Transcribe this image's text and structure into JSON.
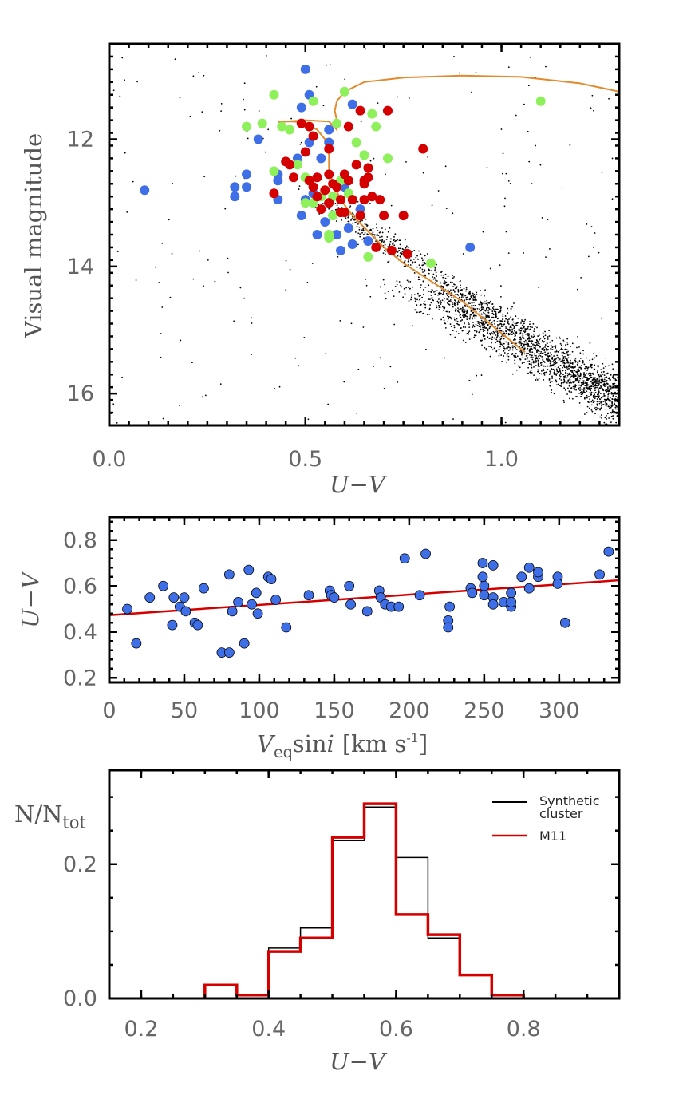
{
  "colors": {
    "blue": "#3f6fe6",
    "green": "#8ef05a",
    "red": "#d40000",
    "orange": "#e28a2b",
    "black": "#000000"
  },
  "chart_data": [
    {
      "type": "scatter",
      "xlabel": "U−V",
      "ylabel": "Visual magnitude",
      "xlim": [
        0.0,
        1.3
      ],
      "ylim": [
        16.5,
        10.5
      ],
      "y_inverted": true,
      "xticks": [
        "0.0",
        "0.5",
        "1.0"
      ],
      "yticks": [
        "12",
        "14",
        "16"
      ],
      "field_stars": "dense scatter of small black dots following the cluster main sequence, thickest at U−V 0.95–1.3, V 14.5–16.5",
      "series": [
        {
          "color": "blue",
          "points": [
            [
              0.09,
              12.8
            ],
            [
              0.32,
              12.75
            ],
            [
              0.32,
              12.9
            ],
            [
              0.35,
              12.55
            ],
            [
              0.35,
              12.75
            ],
            [
              0.38,
              12.0
            ],
            [
              0.43,
              12.55
            ],
            [
              0.43,
              12.65
            ],
            [
              0.43,
              12.95
            ],
            [
              0.48,
              12.3
            ],
            [
              0.49,
              13.2
            ],
            [
              0.49,
              11.5
            ],
            [
              0.5,
              10.9
            ],
            [
              0.5,
              12.95
            ],
            [
              0.51,
              11.3
            ],
            [
              0.51,
              12.05
            ],
            [
              0.52,
              12.85
            ],
            [
              0.53,
              13.5
            ],
            [
              0.54,
              12.3
            ],
            [
              0.55,
              13.3
            ],
            [
              0.56,
              11.85
            ],
            [
              0.56,
              12.05
            ],
            [
              0.58,
              13.5
            ],
            [
              0.59,
              13.75
            ],
            [
              0.6,
              12.75
            ],
            [
              0.61,
              13.4
            ],
            [
              0.62,
              11.45
            ],
            [
              0.62,
              13.65
            ],
            [
              0.64,
              13.1
            ],
            [
              0.66,
              13.6
            ],
            [
              0.92,
              13.7
            ]
          ]
        },
        {
          "color": "green",
          "points": [
            [
              0.35,
              11.8
            ],
            [
              0.39,
              11.75
            ],
            [
              0.42,
              11.3
            ],
            [
              0.42,
              12.5
            ],
            [
              0.44,
              11.8
            ],
            [
              0.46,
              11.85
            ],
            [
              0.48,
              12.4
            ],
            [
              0.5,
              12.6
            ],
            [
              0.5,
              13.0
            ],
            [
              0.52,
              11.4
            ],
            [
              0.52,
              13.0
            ],
            [
              0.54,
              12.9
            ],
            [
              0.56,
              13.5
            ],
            [
              0.56,
              13.55
            ],
            [
              0.57,
              12.9
            ],
            [
              0.57,
              13.2
            ],
            [
              0.58,
              11.75
            ],
            [
              0.59,
              12.65
            ],
            [
              0.6,
              11.25
            ],
            [
              0.61,
              12.85
            ],
            [
              0.63,
              12.05
            ],
            [
              0.65,
              12.25
            ],
            [
              0.66,
              13.85
            ],
            [
              0.67,
              11.6
            ],
            [
              0.68,
              11.8
            ],
            [
              0.71,
              12.3
            ],
            [
              0.82,
              13.95
            ],
            [
              1.1,
              11.4
            ]
          ]
        },
        {
          "color": "red",
          "points": [
            [
              0.42,
              12.85
            ],
            [
              0.45,
              12.35
            ],
            [
              0.46,
              12.4
            ],
            [
              0.47,
              12.6
            ],
            [
              0.49,
              11.75
            ],
            [
              0.5,
              12.2
            ],
            [
              0.51,
              12.65
            ],
            [
              0.51,
              11.8
            ],
            [
              0.52,
              11.95
            ],
            [
              0.52,
              12.75
            ],
            [
              0.53,
              12.6
            ],
            [
              0.53,
              12.9
            ],
            [
              0.54,
              13.1
            ],
            [
              0.55,
              12.8
            ],
            [
              0.56,
              12.15
            ],
            [
              0.56,
              12.55
            ],
            [
              0.56,
              13.0
            ],
            [
              0.57,
              12.7
            ],
            [
              0.58,
              12.75
            ],
            [
              0.59,
              12.95
            ],
            [
              0.59,
              13.15
            ],
            [
              0.6,
              12.55
            ],
            [
              0.6,
              13.15
            ],
            [
              0.61,
              11.8
            ],
            [
              0.61,
              12.65
            ],
            [
              0.62,
              12.95
            ],
            [
              0.63,
              12.4
            ],
            [
              0.64,
              11.55
            ],
            [
              0.64,
              13.2
            ],
            [
              0.65,
              12.65
            ],
            [
              0.65,
              12.7
            ],
            [
              0.65,
              12.95
            ],
            [
              0.66,
              12.45
            ],
            [
              0.66,
              12.6
            ],
            [
              0.67,
              12.9
            ],
            [
              0.68,
              13.7
            ],
            [
              0.69,
              12.95
            ],
            [
              0.7,
              13.2
            ],
            [
              0.71,
              11.55
            ],
            [
              0.72,
              13.75
            ],
            [
              0.75,
              13.2
            ],
            [
              0.76,
              13.8
            ],
            [
              0.8,
              12.15
            ]
          ]
        }
      ],
      "isochrone": {
        "color": "orange",
        "x": [
          1.06,
          1.0,
          0.95,
          0.9,
          0.85,
          0.8,
          0.75,
          0.7,
          0.66,
          0.62,
          0.59,
          0.57,
          0.56,
          0.56,
          0.55,
          0.53,
          0.5,
          0.47,
          0.45,
          0.43,
          0.45,
          0.5,
          0.56,
          0.58,
          0.58,
          0.575,
          0.58,
          0.6,
          0.65,
          0.75,
          0.9,
          1.05,
          1.2,
          1.3
        ],
        "y": [
          15.35,
          15.05,
          14.8,
          14.55,
          14.35,
          14.15,
          13.95,
          13.7,
          13.45,
          13.2,
          12.95,
          12.7,
          12.45,
          12.2,
          12.0,
          11.85,
          11.75,
          11.72,
          11.72,
          11.73,
          11.72,
          11.7,
          11.72,
          11.85,
          11.7,
          11.55,
          11.4,
          11.25,
          11.1,
          11.03,
          11.0,
          11.02,
          11.12,
          11.25
        ]
      }
    },
    {
      "type": "scatter",
      "xlabel_main": "V",
      "xlabel_sub": "eq",
      "xlabel_sin": "sin",
      "xlabel_i": "i",
      "xlabel_units": "[km s",
      "xlabel_sup": "-1",
      "xlabel_close": "]",
      "ylabel": "U−V",
      "xlim": [
        0,
        340
      ],
      "ylim": [
        0.18,
        0.9
      ],
      "xticks": [
        "0",
        "50",
        "100",
        "150",
        "200",
        "250",
        "300"
      ],
      "yticks": [
        "0.2",
        "0.4",
        "0.6",
        "0.8"
      ],
      "points": [
        [
          12,
          0.5
        ],
        [
          18,
          0.35
        ],
        [
          27,
          0.55
        ],
        [
          36,
          0.6
        ],
        [
          42,
          0.43
        ],
        [
          43,
          0.55
        ],
        [
          47,
          0.51
        ],
        [
          50,
          0.55
        ],
        [
          51,
          0.49
        ],
        [
          57,
          0.44
        ],
        [
          59,
          0.43
        ],
        [
          63,
          0.59
        ],
        [
          75,
          0.31
        ],
        [
          80,
          0.65
        ],
        [
          80,
          0.31
        ],
        [
          82,
          0.49
        ],
        [
          86,
          0.53
        ],
        [
          90,
          0.35
        ],
        [
          93,
          0.67
        ],
        [
          95,
          0.52
        ],
        [
          98,
          0.57
        ],
        [
          99,
          0.48
        ],
        [
          106,
          0.64
        ],
        [
          108,
          0.63
        ],
        [
          111,
          0.54
        ],
        [
          118,
          0.42
        ],
        [
          133,
          0.56
        ],
        [
          147,
          0.58
        ],
        [
          148,
          0.56
        ],
        [
          150,
          0.55
        ],
        [
          160,
          0.6
        ],
        [
          161,
          0.52
        ],
        [
          172,
          0.49
        ],
        [
          180,
          0.58
        ],
        [
          181,
          0.55
        ],
        [
          184,
          0.52
        ],
        [
          188,
          0.51
        ],
        [
          193,
          0.51
        ],
        [
          197,
          0.72
        ],
        [
          207,
          0.56
        ],
        [
          211,
          0.74
        ],
        [
          226,
          0.45
        ],
        [
          226,
          0.42
        ],
        [
          227,
          0.51
        ],
        [
          241,
          0.59
        ],
        [
          242,
          0.57
        ],
        [
          249,
          0.7
        ],
        [
          249,
          0.64
        ],
        [
          250,
          0.6
        ],
        [
          250,
          0.56
        ],
        [
          256,
          0.69
        ],
        [
          256,
          0.55
        ],
        [
          256,
          0.52
        ],
        [
          263,
          0.53
        ],
        [
          268,
          0.57
        ],
        [
          268,
          0.51
        ],
        [
          268,
          0.53
        ],
        [
          275,
          0.64
        ],
        [
          280,
          0.68
        ],
        [
          280,
          0.59
        ],
        [
          286,
          0.64
        ],
        [
          286,
          0.66
        ],
        [
          299,
          0.64
        ],
        [
          299,
          0.61
        ],
        [
          304,
          0.44
        ],
        [
          327,
          0.65
        ],
        [
          333,
          0.75
        ]
      ],
      "fit_line": {
        "color": "red",
        "x": [
          0,
          340
        ],
        "y": [
          0.473,
          0.625
        ]
      }
    },
    {
      "type": "step",
      "xlabel": "U−V",
      "ylabel_main": "N/N",
      "ylabel_sub": "tot",
      "xlim": [
        0.15,
        0.95
      ],
      "ylim": [
        0.0,
        0.34
      ],
      "xticks": [
        "0.2",
        "0.4",
        "0.6",
        "0.8"
      ],
      "yticks": [
        "0.0",
        "0.2"
      ],
      "series": [
        {
          "name_line1": "Synthetic",
          "name_line2": "cluster",
          "color": "black",
          "bin_edges": [
            0.3,
            0.35,
            0.4,
            0.45,
            0.5,
            0.55,
            0.6,
            0.65,
            0.7,
            0.75,
            0.8
          ],
          "values": [
            0.0,
            0.005,
            0.075,
            0.105,
            0.235,
            0.285,
            0.21,
            0.09,
            0.035,
            0.005
          ]
        },
        {
          "name": "M11",
          "color": "red",
          "bin_edges": [
            0.3,
            0.35,
            0.4,
            0.45,
            0.5,
            0.55,
            0.6,
            0.65,
            0.7,
            0.75,
            0.8
          ],
          "values": [
            0.02,
            0.005,
            0.07,
            0.09,
            0.24,
            0.29,
            0.125,
            0.095,
            0.035,
            0.005
          ]
        }
      ]
    }
  ]
}
